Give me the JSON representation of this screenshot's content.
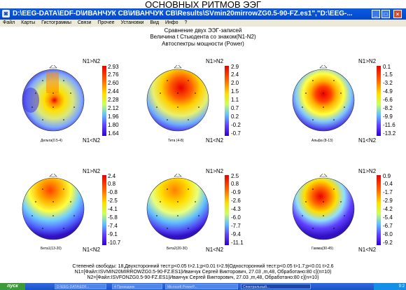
{
  "slide_title": "ОСНОВНЫХ РИТМОВ ЭЭГ",
  "window": {
    "title": "D:\\EEG-DATA\\EDF-D\\ИВАНЧУК СВ\\ИВАНЧУК СВ\\Results\\SVmin20mirrowZG0.5-90-FZ.es1\",\"D:\\EEG-...",
    "icon": "app-icon",
    "controls": [
      "minimize-icon",
      "maximize-icon",
      "close-icon"
    ]
  },
  "menu": [
    "Файл",
    "Карты",
    "Гистограммы",
    "Связи",
    "Прочее",
    "Установки",
    "Вид",
    "Инфо",
    "?"
  ],
  "header": {
    "line1": "Сравнение двух ЭЭГ-записей",
    "line2": "Величина t Стьюдента со знаком(N1-N2)",
    "line3": "Автоспектры мощности (Power)"
  },
  "maps": [
    {
      "band": "Дельта(0.5-4)",
      "top_label": "N1>N2",
      "bottom_label": "N1<N2",
      "ticks": [
        "2.93",
        "2.76",
        "2.60",
        "2.44",
        "2.28",
        "2.12",
        "1.96",
        "1.80",
        "1.64"
      ]
    },
    {
      "band": "Тета (4-8)",
      "top_label": "N1>N2",
      "bottom_label": "N1<N2",
      "ticks": [
        "2.9",
        "2.4",
        "2.0",
        "1.5",
        "1.1",
        "0.7",
        "0.2",
        "-0.2",
        "-0.7"
      ]
    },
    {
      "band": "Альфа (8-13)",
      "top_label": "N1>N2",
      "bottom_label": "N1<N2",
      "ticks": [
        "0.1",
        "-1.5",
        "-3.2",
        "-4.9",
        "-6.6",
        "-8.2",
        "-9.9",
        "-11.6",
        "-13.2"
      ]
    },
    {
      "band": "Бета1(13-20)",
      "top_label": "N1>N2",
      "bottom_label": "N1<N2",
      "ticks": [
        "2.4",
        "0.8",
        "-0.8",
        "-2.5",
        "-4.1",
        "-5.8",
        "-7.4",
        "-9.1",
        "-10.7"
      ]
    },
    {
      "band": "Бета2(20-30)",
      "top_label": "N1>N2",
      "bottom_label": "N1<N2",
      "ticks": [
        "2.5",
        "0.8",
        "-0.9",
        "-2.6",
        "-4.3",
        "-6.0",
        "-7.7",
        "-9.4",
        "-11.1"
      ]
    },
    {
      "band": "Гамма(30-45)",
      "top_label": "N1>N2",
      "bottom_label": "N1<N2",
      "ticks": [
        "0.9",
        "-0.4",
        "-1.7",
        "-2.9",
        "-4.2",
        "-5.4",
        "-6.7",
        "-8.0",
        "-9.2"
      ]
    }
  ],
  "footer": {
    "line1": "Степеней свободы: 18,Двухсторонний тест:p<0.05 t>2.1;p<0.01 t>2.9|Односторонний тест:p<0.05 t>1.7;p<0.01 t>2.6",
    "line2": "N1=[Файл:ISVMIN20MIRROWZG0.5-90-FZ.ES1|Иванчук Сергей Викторович, 27.03 ,m,48, Обработано:80 c](n=10)",
    "line3": "N2=[Файл:ISVFONZG0.5-90-FZ.ES1|Иванчук Сергей Викторович, 27.03 ,m,48, Обработано:80 c](n=10)"
  },
  "taskbar": {
    "start": "пуск",
    "tasks": [
      "D:\\EEG-DATA\\EDF...",
      "4 Проводник",
      "Microsoft PowerP...",
      "Спектральный..."
    ],
    "active_task": 3,
    "tray": "9:2"
  },
  "colors": {
    "titlebar": "#0a5ce0",
    "menubar": "#ece9d8",
    "colorbar_top": "#e80000",
    "colorbar_mid": "#ffff00",
    "colorbar_bottom": "#3000d0"
  }
}
